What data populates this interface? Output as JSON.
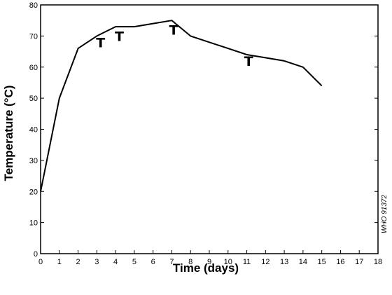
{
  "chart_data": {
    "type": "line",
    "xlabel": "Time (days)",
    "ylabel": "Temperature (°C)",
    "xlim": [
      0,
      18
    ],
    "ylim": [
      0,
      80
    ],
    "x_ticks": [
      0,
      1,
      2,
      3,
      4,
      5,
      6,
      7,
      8,
      9,
      10,
      11,
      12,
      13,
      14,
      15,
      16,
      17,
      18
    ],
    "y_ticks": [
      0,
      10,
      20,
      30,
      40,
      50,
      60,
      70,
      80
    ],
    "grid": false,
    "series": [
      {
        "x": [
          0,
          1,
          2,
          3,
          4,
          5,
          6,
          7,
          8,
          9,
          10,
          11,
          12,
          13,
          14,
          15
        ],
        "y": [
          20,
          50,
          66,
          70,
          73,
          73,
          74,
          75,
          70,
          68,
          66,
          64,
          63,
          62,
          60,
          54
        ]
      }
    ],
    "turning_markers": [
      {
        "label": "T",
        "x": 3.2,
        "y": 68
      },
      {
        "label": "T",
        "x": 4.2,
        "y": 70
      },
      {
        "label": "T",
        "x": 7.1,
        "y": 72
      },
      {
        "label": "T",
        "x": 11.1,
        "y": 62
      }
    ],
    "watermark": "WHO 91372"
  }
}
